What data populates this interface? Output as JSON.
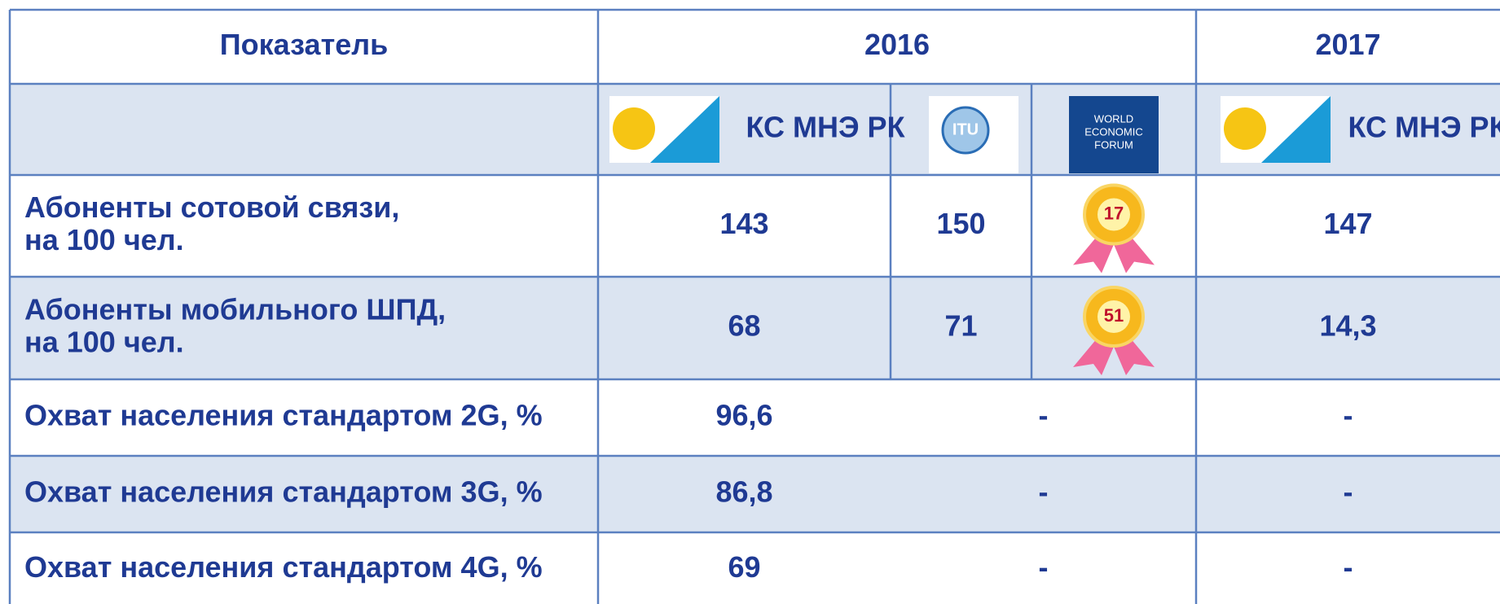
{
  "header": {
    "indicator": "Показатель",
    "years": [
      "2016",
      "2017"
    ]
  },
  "sources": {
    "stat_2016": "КС МНЭ РК",
    "itu": "ITU",
    "wef": [
      "WORLD",
      "ECONOMIC",
      "FORUM"
    ],
    "stat_2017": "КС МНЭ РК"
  },
  "rows": [
    {
      "label": [
        "Абоненты сотовой связи,",
        "на 100 чел."
      ],
      "stat_2016": "143",
      "itu": "150",
      "wef_rank": "17",
      "stat_2017": "147"
    },
    {
      "label": [
        "Абоненты мобильного ШПД,",
        "на 100 чел."
      ],
      "stat_2016": "68",
      "itu": "71",
      "wef_rank": "51",
      "stat_2017": "14,3"
    },
    {
      "label": [
        "Охват населения стандартом 2G, %"
      ],
      "stat_2016": "96,6",
      "other_2016": "-",
      "stat_2017": "-"
    },
    {
      "label": [
        "Охват населения стандартом 3G, %"
      ],
      "stat_2016": "86,8",
      "other_2016": "-",
      "stat_2017": "-"
    },
    {
      "label": [
        "Охват населения стандартом 4G, %"
      ],
      "stat_2016": "69",
      "other_2016": "-",
      "stat_2017": "-"
    }
  ]
}
